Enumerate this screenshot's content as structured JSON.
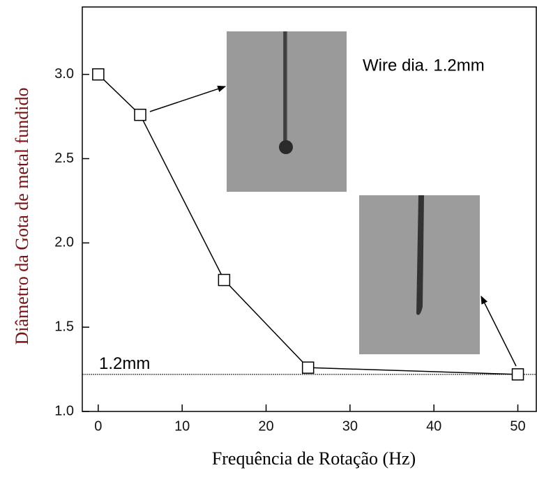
{
  "chart_data": {
    "type": "line",
    "x_label": "Frequência de Rotação (Hz)",
    "y_label": "Diâmetro da Gota de metal fundido",
    "annotation": "Wire dia. 1.2mm",
    "reference_line": {
      "value": 1.22,
      "label": "1.2mm"
    },
    "x": [
      0,
      5,
      15,
      25,
      50
    ],
    "series": [
      {
        "color": "#000000",
        "values": [
          3.0,
          2.76,
          1.78,
          1.26,
          1.22
        ]
      }
    ],
    "xlim": [
      -1.9,
      52.2
    ],
    "ylim": [
      1.0,
      3.4
    ],
    "xticks": [
      0,
      10,
      20,
      30,
      40,
      50
    ],
    "yticks": [
      {
        "value": 1,
        "label": "1.0"
      },
      1.5,
      {
        "value": 2,
        "label": "2.0"
      },
      2.5,
      {
        "value": 3,
        "label": "3.0"
      }
    ],
    "y_label_color": "#7a1010"
  }
}
